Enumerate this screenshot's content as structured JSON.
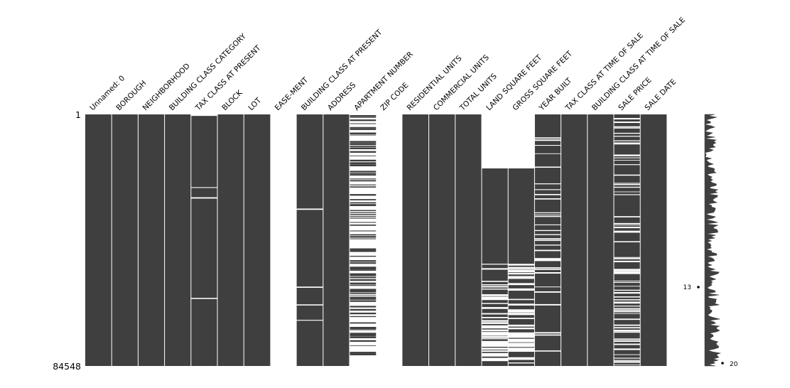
{
  "chart_data": {
    "type": "missingness-matrix",
    "title": "",
    "row_range": {
      "first": "1",
      "last": "84548"
    },
    "colors": {
      "present": "#3f3f3f",
      "missing": "#ffffff",
      "background": "#ffffff"
    },
    "columns": [
      {
        "name": "Unnamed: 0",
        "completeness": 1.0
      },
      {
        "name": "BOROUGH",
        "completeness": 1.0
      },
      {
        "name": "NEIGHBORHOOD",
        "completeness": 1.0
      },
      {
        "name": "BUILDING CLASS CATEGORY",
        "completeness": 1.0
      },
      {
        "name": "TAX CLASS AT PRESENT",
        "completeness": 0.99
      },
      {
        "name": "BLOCK",
        "completeness": 1.0
      },
      {
        "name": "LOT",
        "completeness": 1.0
      },
      {
        "name": "EASE-MENT",
        "completeness": 0.0
      },
      {
        "name": "BUILDING CLASS AT PRESENT",
        "completeness": 0.99
      },
      {
        "name": "ADDRESS",
        "completeness": 1.0
      },
      {
        "name": "APARTMENT NUMBER",
        "completeness": 0.22
      },
      {
        "name": "ZIP CODE",
        "completeness": 0.0
      },
      {
        "name": "RESIDENTIAL UNITS",
        "completeness": 1.0
      },
      {
        "name": "COMMERCIAL UNITS",
        "completeness": 1.0
      },
      {
        "name": "TOTAL UNITS",
        "completeness": 1.0
      },
      {
        "name": "LAND SQUARE FEET",
        "completeness": 0.69
      },
      {
        "name": "GROSS SQUARE FEET",
        "completeness": 0.67
      },
      {
        "name": "YEAR BUILT",
        "completeness": 0.92
      },
      {
        "name": "TAX CLASS AT TIME OF SALE",
        "completeness": 1.0
      },
      {
        "name": "BUILDING CLASS AT TIME OF SALE",
        "completeness": 1.0
      },
      {
        "name": "SALE PRICE",
        "completeness": 0.83
      },
      {
        "name": "SALE DATE",
        "completeness": 1.0
      }
    ],
    "sparkline": {
      "min_label": "13",
      "max_label": "20"
    }
  }
}
